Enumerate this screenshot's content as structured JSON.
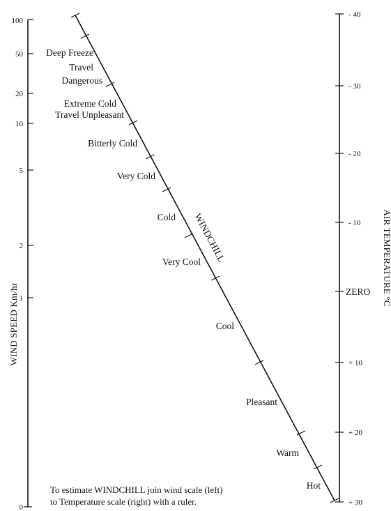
{
  "wind_scale": {
    "title": "WIND SPEED Km/hr",
    "ticks": [
      {
        "label": "100"
      },
      {
        "label": "50"
      },
      {
        "label": "20"
      },
      {
        "label": "10"
      },
      {
        "label": "5"
      },
      {
        "label": "2"
      },
      {
        "label": "1"
      },
      {
        "label": "0"
      }
    ]
  },
  "temperature_scale": {
    "title": "AIR TEMPERATURE °C",
    "ticks": [
      {
        "label": "- 40"
      },
      {
        "label": "- 30"
      },
      {
        "label": "- 20"
      },
      {
        "label": "- 10"
      },
      {
        "label": "ZERO"
      },
      {
        "label": "+ 10"
      },
      {
        "label": "+ 20"
      },
      {
        "label": "+ 30"
      }
    ]
  },
  "windchill_scale": {
    "title": "WINDCHILL",
    "zones": [
      {
        "label": "Deep Freeze"
      },
      {
        "label": "Travel"
      },
      {
        "label": "Dangerous"
      },
      {
        "label": "Extreme Cold"
      },
      {
        "label": "Travel Unpleasant"
      },
      {
        "label": "Bitterly Cold"
      },
      {
        "label": "Very Cold"
      },
      {
        "label": "Cold"
      },
      {
        "label": "Very Cool"
      },
      {
        "label": "Cool"
      },
      {
        "label": "Pleasant"
      },
      {
        "label": "Warm"
      },
      {
        "label": "Hot"
      }
    ]
  },
  "instructions": {
    "line1": "To estimate WINDCHILL join wind scale (left)",
    "line2": "to Temperature scale (right) with a ruler."
  }
}
